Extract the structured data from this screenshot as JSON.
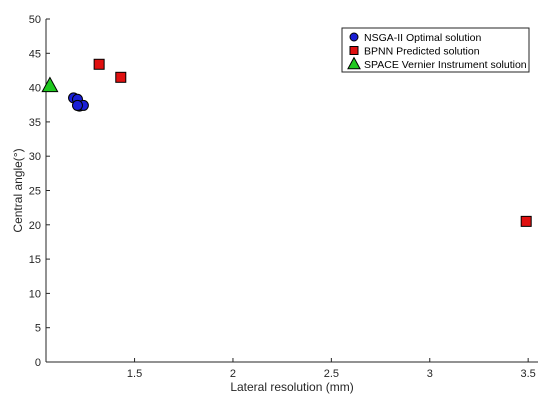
{
  "chart_data": {
    "type": "scatter",
    "xlabel": "Lateral resolution (mm)",
    "ylabel": "Central angle(°)",
    "xlim": [
      1.05,
      3.55
    ],
    "ylim": [
      0,
      50
    ],
    "xticks": [
      1.5,
      2,
      2.5,
      3,
      3.5
    ],
    "xtick_labels": [
      "1.5",
      "2",
      "2.5",
      "3",
      "3.5"
    ],
    "yticks": [
      0,
      5,
      10,
      15,
      20,
      25,
      30,
      35,
      40,
      45,
      50
    ],
    "ytick_labels": [
      "0",
      "5",
      "10",
      "15",
      "20",
      "25",
      "30",
      "35",
      "40",
      "45",
      "50"
    ],
    "grid": false,
    "legend_position": "top-right",
    "series": [
      {
        "name": "NSGA-II Optimal solution",
        "marker": "circle",
        "color": "#1a1fd6",
        "points": [
          [
            1.19,
            38.5
          ],
          [
            1.21,
            38.3
          ],
          [
            1.22,
            37.3
          ],
          [
            1.24,
            37.4
          ],
          [
            1.21,
            37.4
          ]
        ]
      },
      {
        "name": "BPNN Predicted solution",
        "marker": "square",
        "color": "#e01010",
        "points": [
          [
            1.32,
            43.4
          ],
          [
            1.43,
            41.5
          ],
          [
            3.49,
            20.5
          ]
        ]
      },
      {
        "name": "SPACE Vernier Instrument solution",
        "marker": "triangle",
        "color": "#1fc81f",
        "points": [
          [
            1.07,
            40.3
          ]
        ]
      }
    ]
  }
}
